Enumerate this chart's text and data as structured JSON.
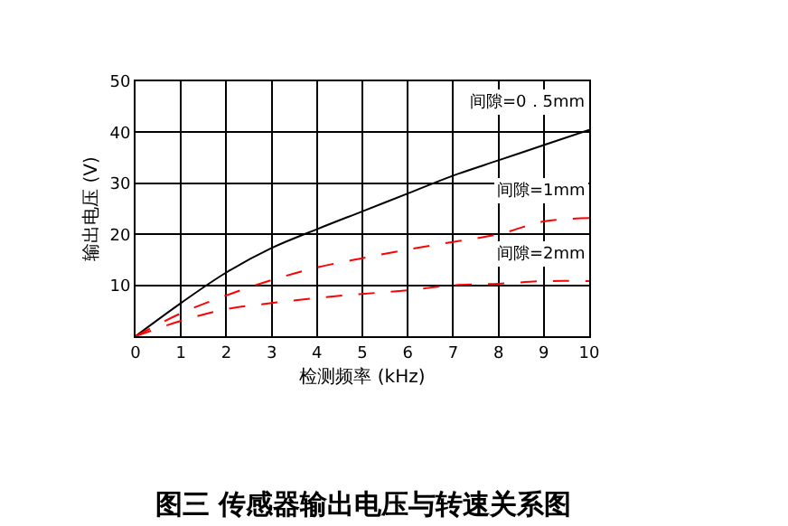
{
  "chart_data": {
    "type": "line",
    "title": "图三 传感器输出电压与转速关系图",
    "xlabel": "检测频率 (kHz)",
    "ylabel": "输出电压 (V)",
    "x": [
      0,
      1,
      2,
      3,
      4,
      5,
      6,
      7,
      8,
      9,
      10
    ],
    "series": [
      {
        "name": "间隙=0．5mm",
        "color": "#000000",
        "line_style": "solid",
        "values": [
          0,
          6.5,
          12.5,
          17.3,
          21,
          24.5,
          28,
          31.5,
          34.5,
          37.5,
          40.5
        ]
      },
      {
        "name": "间隙=1mm",
        "color": "#ff0000",
        "line_style": "dashed",
        "values": [
          0,
          4.5,
          8,
          11,
          13.5,
          15.3,
          17,
          18.5,
          20,
          22.5,
          23.2
        ]
      },
      {
        "name": "间隙=2mm",
        "color": "#ff0000",
        "line_style": "dashed",
        "values": [
          0,
          3,
          5.3,
          6.5,
          7.5,
          8.3,
          9,
          10,
          10.3,
          10.8,
          10.8
        ]
      }
    ],
    "xlim": [
      0,
      10
    ],
    "xticks": [
      0,
      1,
      2,
      3,
      4,
      5,
      6,
      7,
      8,
      9,
      10
    ],
    "ylim": [
      0,
      50
    ],
    "yticks": [
      {
        "value": 0,
        "label": null
      },
      10,
      20,
      30,
      40,
      50
    ],
    "grid": true,
    "legend": false,
    "marker": "none"
  }
}
